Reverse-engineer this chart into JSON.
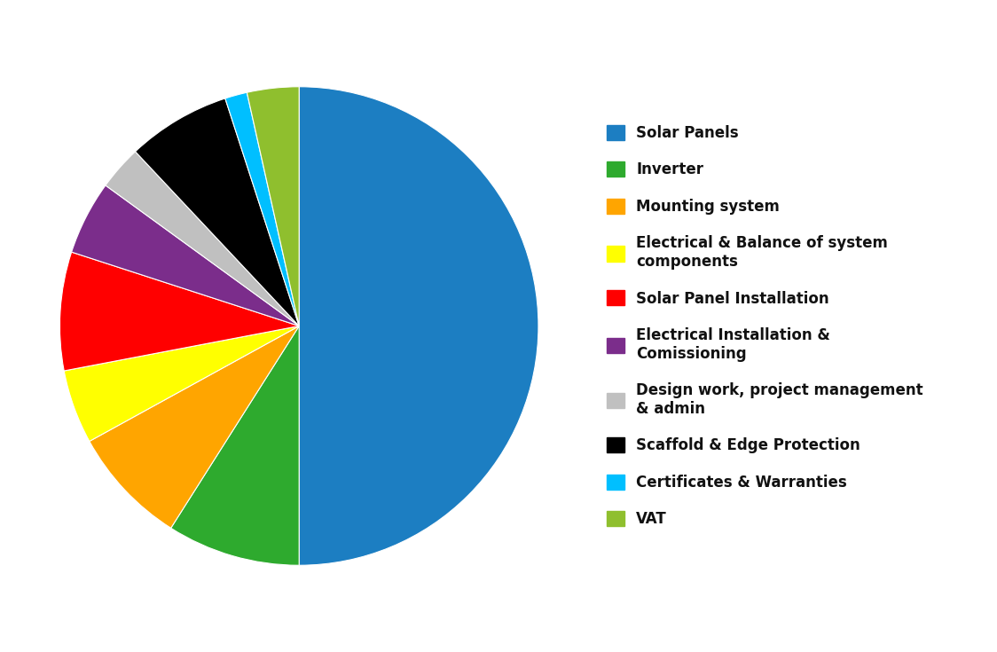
{
  "labels": [
    "Solar Panels",
    "Inverter",
    "Mounting system",
    "Electrical & Balance of system\ncomponents",
    "Solar Panel Installation",
    "Electrical Installation &\nComissioning",
    "Design work, project management\n& admin",
    "Scaffold & Edge Protection",
    "Certificates & Warranties",
    "VAT"
  ],
  "values": [
    50,
    9,
    8,
    5,
    8,
    5,
    3,
    7,
    1.5,
    3.5
  ],
  "colors": [
    "#1C7EC2",
    "#2EAA2E",
    "#FFA500",
    "#FFFF00",
    "#FF0000",
    "#7B2D8B",
    "#C0C0C0",
    "#000000",
    "#00BFFF",
    "#8FBF2E"
  ],
  "legend_labels": [
    "Solar Panels",
    "Inverter",
    "Mounting system",
    "Electrical & Balance of system\ncomponents",
    "Solar Panel Installation",
    "Electrical Installation &\nComissioning",
    "Design work, project management\n& admin",
    "Scaffold & Edge Protection",
    "Certificates & Warranties",
    "VAT"
  ],
  "background_color": "#FFFFFF",
  "startangle": 90,
  "legend_fontsize": 12,
  "figsize": [
    11.24,
    7.35
  ]
}
